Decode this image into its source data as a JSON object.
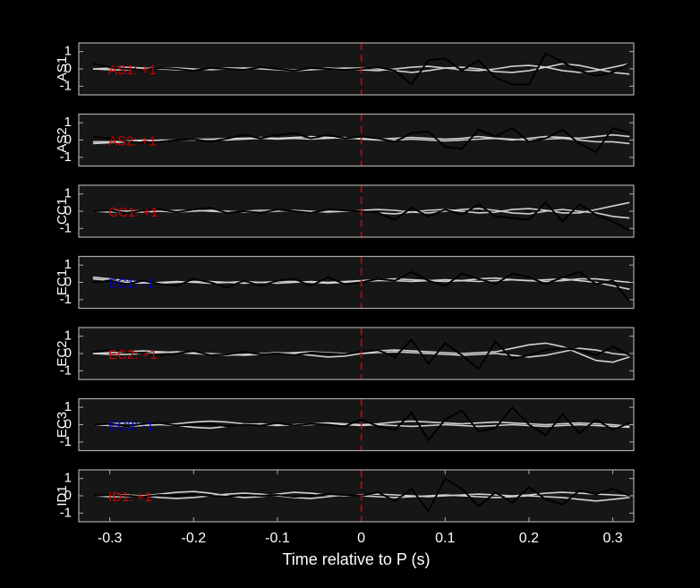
{
  "chart_data": [
    {
      "type": "line",
      "ylabel": "AS1",
      "annotation": "AS1: +1",
      "annotation_color": "#cc0000",
      "vline_x": 0,
      "vline_color": "#dd0000",
      "xlim": [
        -0.337,
        0.325
      ],
      "ylim": [
        -1.5,
        1.5
      ],
      "yticks": [
        -1,
        0,
        1
      ],
      "x": [
        -0.32,
        -0.3,
        -0.28,
        -0.26,
        -0.24,
        -0.22,
        -0.2,
        -0.18,
        -0.16,
        -0.14,
        -0.12,
        -0.1,
        -0.08,
        -0.06,
        -0.04,
        -0.02,
        0,
        0.02,
        0.04,
        0.06,
        0.08,
        0.1,
        0.12,
        0.14,
        0.16,
        0.18,
        0.2,
        0.22,
        0.24,
        0.26,
        0.28,
        0.3,
        0.32
      ],
      "series": [
        {
          "color": "#d0d0d0",
          "values": [
            0,
            0.05,
            0.1,
            0.05,
            0,
            -0.05,
            -0.05,
            0,
            0.05,
            0.05,
            0,
            -0.05,
            -0.1,
            -0.05,
            0,
            0.05,
            0.05,
            0,
            -0.1,
            -0.2,
            -0.1,
            0.05,
            0.1,
            0,
            -0.15,
            -0.2,
            -0.1,
            0.1,
            0.3,
            0.2,
            0,
            -0.2,
            -0.3
          ]
        },
        {
          "color": "#d0d0d0",
          "values": [
            0,
            -0.05,
            -0.05,
            0,
            0.05,
            0.05,
            0,
            -0.05,
            0,
            0.05,
            0.05,
            0,
            -0.05,
            0,
            0.05,
            0,
            -0.05,
            -0.1,
            0,
            0.1,
            0.15,
            0.05,
            -0.05,
            -0.1,
            0,
            0.15,
            0.2,
            0.1,
            -0.1,
            -0.2,
            -0.1,
            0.1,
            0.3
          ]
        },
        {
          "color": "#000000",
          "values": [
            0.3,
            0.1,
            0,
            -0.05,
            0.05,
            0,
            -0.1,
            0.05,
            0,
            -0.05,
            0.1,
            0,
            -0.1,
            0.05,
            0,
            -0.05,
            0,
            0.1,
            -0.1,
            -0.9,
            0.5,
            0.6,
            -0.1,
            0.5,
            -0.5,
            -0.9,
            -0.9,
            0.9,
            0.4,
            -0.1,
            -0.4,
            -0.2,
            0.3
          ]
        }
      ]
    },
    {
      "type": "line",
      "ylabel": "AS2",
      "annotation": "AS2: +1",
      "annotation_color": "#cc0000",
      "vline_x": 0,
      "vline_color": "#dd0000",
      "xlim": [
        -0.337,
        0.325
      ],
      "ylim": [
        -1.5,
        1.5
      ],
      "yticks": [
        -1,
        0,
        1
      ],
      "x": [
        -0.32,
        -0.3,
        -0.28,
        -0.26,
        -0.24,
        -0.22,
        -0.2,
        -0.18,
        -0.16,
        -0.14,
        -0.12,
        -0.1,
        -0.08,
        -0.06,
        -0.04,
        -0.02,
        0,
        0.02,
        0.04,
        0.06,
        0.08,
        0.1,
        0.12,
        0.14,
        0.16,
        0.18,
        0.2,
        0.22,
        0.24,
        0.26,
        0.28,
        0.3,
        0.32
      ],
      "series": [
        {
          "color": "#d0d0d0",
          "values": [
            -0.2,
            -0.15,
            -0.1,
            -0.05,
            0,
            0,
            0.05,
            0.05,
            0.1,
            0.1,
            0.15,
            0.1,
            0.15,
            0.2,
            0.15,
            0.1,
            0.1,
            0.05,
            0.1,
            0.15,
            0.1,
            0.05,
            0.1,
            0.2,
            0.1,
            0,
            0.1,
            0.2,
            0.15,
            0.1,
            0.2,
            0.3,
            0.2
          ]
        },
        {
          "color": "#d0d0d0",
          "values": [
            -0.1,
            -0.1,
            -0.05,
            0,
            -0.05,
            0,
            0,
            0.05,
            0,
            0.05,
            0.1,
            0.05,
            0.1,
            0.05,
            0.1,
            0.15,
            0.05,
            0,
            0,
            0.05,
            0,
            -0.05,
            0,
            0.05,
            0.1,
            0.05,
            0,
            0.05,
            0.1,
            0,
            -0.1,
            -0.1,
            -0.2
          ]
        },
        {
          "color": "#000000",
          "values": [
            0.2,
            0.1,
            -0.1,
            -0.15,
            -0.1,
            0,
            0.05,
            -0.1,
            0.1,
            0.3,
            0.1,
            0.3,
            0.4,
            0.1,
            0.3,
            0.1,
            0.2,
            0.1,
            -0.1,
            0.4,
            0.5,
            -0.4,
            -0.5,
            0.6,
            0.2,
            0.7,
            -0.1,
            0.1,
            0.6,
            -0.2,
            -0.7,
            0.7,
            0.4
          ]
        }
      ]
    },
    {
      "type": "line",
      "ylabel": "CC1",
      "annotation": "CC1: +1",
      "annotation_color": "#cc0000",
      "vline_x": 0,
      "vline_color": "#dd0000",
      "xlim": [
        -0.337,
        0.325
      ],
      "ylim": [
        -1.5,
        1.5
      ],
      "yticks": [
        -1,
        0,
        1
      ],
      "x": [
        -0.32,
        -0.3,
        -0.28,
        -0.26,
        -0.24,
        -0.22,
        -0.2,
        -0.18,
        -0.16,
        -0.14,
        -0.12,
        -0.1,
        -0.08,
        -0.06,
        -0.04,
        -0.02,
        0,
        0.02,
        0.04,
        0.06,
        0.08,
        0.1,
        0.12,
        0.14,
        0.16,
        0.18,
        0.2,
        0.22,
        0.24,
        0.26,
        0.28,
        0.3,
        0.32
      ],
      "series": [
        {
          "color": "#d0d0d0",
          "values": [
            0,
            0.05,
            0,
            -0.05,
            0,
            0.05,
            0.05,
            0,
            -0.05,
            0,
            0.05,
            0.05,
            0,
            -0.05,
            0,
            0.05,
            0,
            -0.1,
            -0.15,
            -0.05,
            0.05,
            0.1,
            0,
            -0.1,
            -0.05,
            0.1,
            0.15,
            0.05,
            -0.1,
            -0.1,
            0.1,
            0.3,
            0.5
          ]
        },
        {
          "color": "#d0d0d0",
          "values": [
            0,
            -0.05,
            0,
            0.05,
            0,
            -0.05,
            0,
            0.05,
            0,
            -0.05,
            -0.05,
            0,
            0.05,
            0,
            -0.05,
            0,
            0.05,
            0.1,
            0.05,
            -0.05,
            -0.1,
            0,
            0.1,
            0.15,
            0.05,
            -0.1,
            -0.15,
            0,
            0.1,
            0,
            -0.1,
            -0.3,
            -0.4
          ]
        },
        {
          "color": "#000000",
          "values": [
            0,
            0.05,
            -0.1,
            0.05,
            0.1,
            -0.05,
            0.1,
            0.2,
            -0.1,
            0,
            -0.1,
            0.1,
            0,
            -0.1,
            0.1,
            0.05,
            0,
            -0.1,
            -0.5,
            0.2,
            -0.3,
            0.1,
            -0.2,
            0.4,
            -0.3,
            -0.4,
            -0.5,
            0.5,
            -0.6,
            0.4,
            -0.2,
            -0.6,
            -1.1
          ]
        }
      ]
    },
    {
      "type": "line",
      "ylabel": "EC1",
      "annotation": "EC1: -1",
      "annotation_color": "#0000bb",
      "vline_x": 0,
      "vline_color": "#dd0000",
      "xlim": [
        -0.337,
        0.325
      ],
      "ylim": [
        -1.5,
        1.5
      ],
      "yticks": [
        -1,
        0,
        1
      ],
      "x": [
        -0.32,
        -0.3,
        -0.28,
        -0.26,
        -0.24,
        -0.22,
        -0.2,
        -0.18,
        -0.16,
        -0.14,
        -0.12,
        -0.1,
        -0.08,
        -0.06,
        -0.04,
        -0.02,
        0,
        0.02,
        0.04,
        0.06,
        0.08,
        0.1,
        0.12,
        0.14,
        0.16,
        0.18,
        0.2,
        0.22,
        0.24,
        0.26,
        0.28,
        0.3,
        0.32
      ],
      "series": [
        {
          "color": "#d0d0d0",
          "values": [
            0.3,
            0.2,
            0.1,
            0,
            -0.05,
            0,
            0.05,
            0.05,
            0,
            -0.05,
            0,
            0.05,
            0.05,
            0,
            -0.05,
            0,
            0.05,
            0.1,
            0.1,
            0.05,
            0.1,
            0.15,
            0.1,
            0.05,
            0.1,
            0.15,
            0.1,
            0.05,
            0.1,
            0.2,
            0.2,
            0.1,
            0
          ]
        },
        {
          "color": "#d0d0d0",
          "values": [
            0.2,
            0.1,
            0,
            -0.05,
            0,
            0.05,
            0,
            -0.05,
            0,
            0.05,
            0,
            -0.05,
            0,
            0.05,
            0,
            0.05,
            0.1,
            0.15,
            0.2,
            0.15,
            0.1,
            0.05,
            0.1,
            0.2,
            0.25,
            0.15,
            0.1,
            0.15,
            0.2,
            0.1,
            0,
            -0.2,
            -0.4
          ]
        },
        {
          "color": "#000000",
          "values": [
            0,
            0.1,
            -0.1,
            0.1,
            -0.1,
            -0.2,
            0.2,
            0,
            -0.3,
            0.1,
            -0.2,
            0.1,
            0.2,
            -0.2,
            0.3,
            -0.1,
            0,
            0.2,
            0.1,
            0.6,
            0.1,
            -0.2,
            0.5,
            0.2,
            -0.1,
            0.5,
            0.3,
            -0.1,
            0.3,
            0.6,
            -0.1,
            0.1,
            -1.1
          ]
        }
      ]
    },
    {
      "type": "line",
      "ylabel": "EC2",
      "annotation": "EC2: +1",
      "annotation_color": "#cc0000",
      "vline_x": 0,
      "vline_color": "#dd0000",
      "xlim": [
        -0.337,
        0.325
      ],
      "ylim": [
        -1.5,
        1.5
      ],
      "yticks": [
        -1,
        0,
        1
      ],
      "x": [
        -0.32,
        -0.3,
        -0.28,
        -0.26,
        -0.24,
        -0.22,
        -0.2,
        -0.18,
        -0.16,
        -0.14,
        -0.12,
        -0.1,
        -0.08,
        -0.06,
        -0.04,
        -0.02,
        0,
        0.02,
        0.04,
        0.06,
        0.08,
        0.1,
        0.12,
        0.14,
        0.16,
        0.18,
        0.2,
        0.22,
        0.24,
        0.26,
        0.28,
        0.3,
        0.32
      ],
      "series": [
        {
          "color": "#d0d0d0",
          "values": [
            0,
            0.05,
            0.1,
            0.15,
            0.1,
            0.05,
            0,
            -0.05,
            -0.1,
            -0.05,
            0,
            0.05,
            0,
            -0.1,
            -0.2,
            -0.15,
            0,
            0.15,
            0.2,
            0.15,
            0.1,
            0.05,
            0,
            0.05,
            0.1,
            0.3,
            0.5,
            0.6,
            0.4,
            0,
            -0.4,
            -0.5,
            -0.2
          ]
        },
        {
          "color": "#d0d0d0",
          "values": [
            0,
            -0.05,
            -0.05,
            0,
            0.05,
            0.1,
            0.05,
            0,
            -0.05,
            -0.1,
            -0.05,
            0,
            0.05,
            0.1,
            0.05,
            0,
            0,
            0.05,
            0.1,
            0.05,
            0,
            -0.05,
            -0.1,
            -0.05,
            0,
            -0.1,
            -0.2,
            -0.1,
            0.1,
            0.3,
            0.2,
            0,
            -0.1
          ]
        },
        {
          "color": "#000000",
          "values": [
            0.1,
            0.2,
            0.1,
            0,
            -0.1,
            0,
            0.15,
            -0.1,
            -0.05,
            0.1,
            -0.05,
            0,
            -0.1,
            0.05,
            0,
            -0.05,
            0.1,
            0.2,
            -0.2,
            0.8,
            -0.6,
            0.6,
            -0.1,
            -0.9,
            0.7,
            -0.3,
            -0.1,
            0.2,
            0.3,
            0.2,
            -0.1,
            0.4,
            -0.1
          ]
        }
      ]
    },
    {
      "type": "line",
      "ylabel": "EC3",
      "annotation": "EC3: -1",
      "annotation_color": "#0000bb",
      "vline_x": 0,
      "vline_color": "#dd0000",
      "xlim": [
        -0.337,
        0.325
      ],
      "ylim": [
        -1.5,
        1.5
      ],
      "yticks": [
        -1,
        0,
        1
      ],
      "x": [
        -0.32,
        -0.3,
        -0.28,
        -0.26,
        -0.24,
        -0.22,
        -0.2,
        -0.18,
        -0.16,
        -0.14,
        -0.12,
        -0.1,
        -0.08,
        -0.06,
        -0.04,
        -0.02,
        0,
        0.02,
        0.04,
        0.06,
        0.08,
        0.1,
        0.12,
        0.14,
        0.16,
        0.18,
        0.2,
        0.22,
        0.24,
        0.26,
        0.28,
        0.3,
        0.32
      ],
      "series": [
        {
          "color": "#d0d0d0",
          "values": [
            0,
            0.05,
            0.1,
            0.05,
            0,
            0.05,
            0.15,
            0.2,
            0.15,
            0.05,
            0,
            -0.05,
            0,
            0.05,
            0.1,
            0.05,
            0,
            0.05,
            0.15,
            0.2,
            0.15,
            0.1,
            0.05,
            0.1,
            0.15,
            0.1,
            0.05,
            0,
            0.05,
            0.1,
            0.05,
            0,
            -0.1
          ]
        },
        {
          "color": "#d0d0d0",
          "values": [
            0,
            -0.05,
            -0.1,
            -0.05,
            0,
            -0.05,
            -0.15,
            -0.2,
            -0.1,
            0,
            0.05,
            0,
            -0.05,
            0,
            0.05,
            0,
            -0.05,
            0,
            -0.05,
            -0.1,
            -0.05,
            0,
            -0.05,
            -0.1,
            -0.05,
            0,
            -0.05,
            -0.1,
            -0.05,
            0,
            -0.05,
            -0.1,
            -0.15
          ]
        },
        {
          "color": "#000000",
          "values": [
            0,
            0.05,
            -0.1,
            0.05,
            0.1,
            -0.05,
            0,
            0.05,
            -0.1,
            0,
            -0.05,
            0.1,
            -0.05,
            0.05,
            0,
            -0.1,
            0.3,
            -0.1,
            -0.3,
            0.7,
            -0.9,
            0.3,
            0.8,
            -0.4,
            -0.2,
            1.0,
            0,
            -0.6,
            0.6,
            -0.5,
            0.3,
            -0.3,
            0.1
          ]
        }
      ]
    },
    {
      "type": "line",
      "ylabel": "ID1",
      "annotation": "ID1: +1",
      "annotation_color": "#cc0000",
      "vline_x": 0,
      "vline_color": "#dd0000",
      "xlim": [
        -0.337,
        0.325
      ],
      "ylim": [
        -1.5,
        1.5
      ],
      "yticks": [
        -1,
        0,
        1
      ],
      "xticks": [
        -0.3,
        -0.2,
        -0.1,
        0,
        0.1,
        0.2,
        0.3
      ],
      "xlabel": "Time relative to P (s)",
      "x": [
        -0.32,
        -0.3,
        -0.28,
        -0.26,
        -0.24,
        -0.22,
        -0.2,
        -0.18,
        -0.16,
        -0.14,
        -0.12,
        -0.1,
        -0.08,
        -0.06,
        -0.04,
        -0.02,
        0,
        0.02,
        0.04,
        0.06,
        0.08,
        0.1,
        0.12,
        0.14,
        0.16,
        0.18,
        0.2,
        0.22,
        0.24,
        0.26,
        0.28,
        0.3,
        0.32
      ],
      "series": [
        {
          "color": "#d0d0d0",
          "values": [
            0,
            0.05,
            0.05,
            0,
            0.1,
            0.2,
            0.25,
            0.15,
            0,
            -0.1,
            -0.05,
            0.1,
            0.2,
            0.15,
            0.05,
            0,
            0.05,
            0.1,
            0.05,
            0,
            -0.05,
            0,
            0.05,
            0.1,
            0.05,
            0,
            0.05,
            0.15,
            0.2,
            0.15,
            0.1,
            0.05,
            0
          ]
        },
        {
          "color": "#d0d0d0",
          "values": [
            0,
            -0.05,
            -0.05,
            0,
            -0.1,
            -0.15,
            -0.1,
            0,
            0.1,
            0.15,
            0.1,
            0,
            -0.1,
            -0.15,
            -0.05,
            0.05,
            0,
            -0.05,
            -0.1,
            -0.05,
            0,
            0.05,
            0,
            -0.05,
            -0.1,
            -0.05,
            0,
            -0.05,
            -0.1,
            -0.2,
            -0.3,
            -0.2,
            -0.1
          ]
        },
        {
          "color": "#000000",
          "values": [
            0,
            0.05,
            0,
            -0.05,
            0.05,
            0,
            0.1,
            0,
            -0.05,
            0.05,
            0,
            0.05,
            -0.05,
            0,
            0.1,
            0.05,
            0,
            0.2,
            -0.3,
            0.4,
            -0.9,
            1.0,
            0.4,
            -0.6,
            0.2,
            -0.4,
            0.5,
            -0.2,
            -0.5,
            0.3,
            0.1,
            0.4,
            0
          ]
        }
      ]
    }
  ]
}
